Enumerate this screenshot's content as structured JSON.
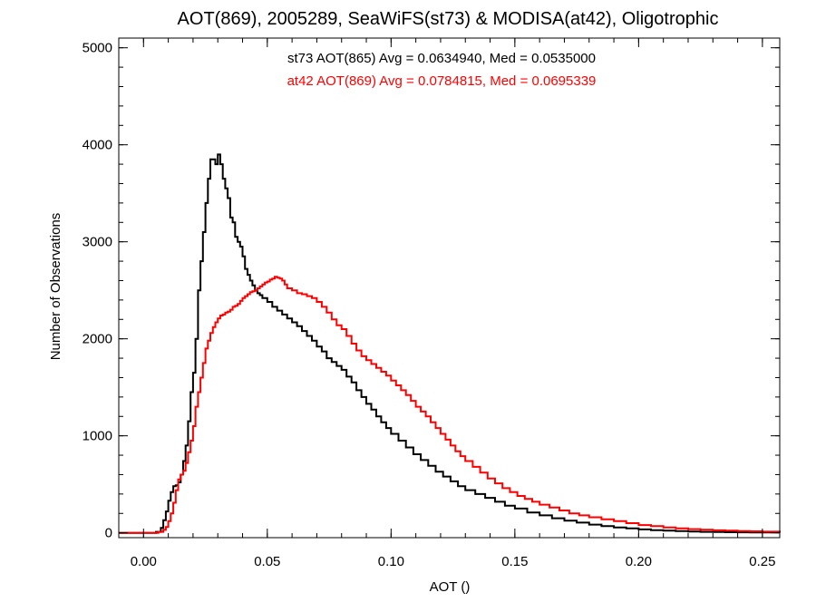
{
  "chart_data": {
    "type": "line",
    "title": "AOT(869), 2005289, SeaWiFS(st73) & MODISA(at42), Oligotrophic",
    "xlabel": "AOT ()",
    "ylabel": "Number of Observations",
    "xlim": [
      -0.01,
      0.257
    ],
    "ylim": [
      -50,
      5100
    ],
    "x_ticks": [
      0.0,
      0.05,
      0.1,
      0.15,
      0.2,
      0.25
    ],
    "x_tick_labels": [
      "0.00",
      "0.05",
      "0.10",
      "0.15",
      "0.20",
      "0.25"
    ],
    "y_ticks": [
      0,
      1000,
      2000,
      3000,
      4000,
      5000
    ],
    "y_tick_labels": [
      "0",
      "1000",
      "2000",
      "3000",
      "4000",
      "5000"
    ],
    "grid": false,
    "step": "histogram",
    "annotations": [
      {
        "text": "st73 AOT(865) Avg = 0.0634940, Med = 0.0535000",
        "color": "#000000"
      },
      {
        "text": "at42 AOT(869) Avg = 0.0784815, Med = 0.0695339",
        "color": "#ff0000"
      }
    ],
    "series": [
      {
        "color": "#000000",
        "points": [
          [
            -0.01,
            0
          ],
          [
            0.003,
            0
          ],
          [
            0.005,
            10
          ],
          [
            0.007,
            50
          ],
          [
            0.008,
            130
          ],
          [
            0.009,
            220
          ],
          [
            0.01,
            330
          ],
          [
            0.011,
            420
          ],
          [
            0.012,
            480
          ],
          [
            0.013,
            490
          ],
          [
            0.014,
            520
          ],
          [
            0.015,
            600
          ],
          [
            0.016,
            740
          ],
          [
            0.017,
            900
          ],
          [
            0.018,
            1150
          ],
          [
            0.019,
            1450
          ],
          [
            0.02,
            1650
          ],
          [
            0.021,
            2000
          ],
          [
            0.022,
            2500
          ],
          [
            0.023,
            2800
          ],
          [
            0.024,
            3100
          ],
          [
            0.025,
            3400
          ],
          [
            0.026,
            3650
          ],
          [
            0.027,
            3850
          ],
          [
            0.028,
            3850
          ],
          [
            0.029,
            3800
          ],
          [
            0.03,
            3900
          ],
          [
            0.031,
            3800
          ],
          [
            0.032,
            3650
          ],
          [
            0.033,
            3550
          ],
          [
            0.034,
            3450
          ],
          [
            0.035,
            3250
          ],
          [
            0.036,
            3200
          ],
          [
            0.037,
            3050
          ],
          [
            0.038,
            3000
          ],
          [
            0.039,
            2950
          ],
          [
            0.04,
            2850
          ],
          [
            0.041,
            2720
          ],
          [
            0.042,
            2660
          ],
          [
            0.043,
            2600
          ],
          [
            0.044,
            2550
          ],
          [
            0.045,
            2500
          ],
          [
            0.046,
            2470
          ],
          [
            0.047,
            2450
          ],
          [
            0.048,
            2420
          ],
          [
            0.05,
            2380
          ],
          [
            0.052,
            2330
          ],
          [
            0.054,
            2290
          ],
          [
            0.056,
            2250
          ],
          [
            0.058,
            2210
          ],
          [
            0.06,
            2170
          ],
          [
            0.062,
            2130
          ],
          [
            0.064,
            2080
          ],
          [
            0.066,
            2030
          ],
          [
            0.068,
            1980
          ],
          [
            0.07,
            1920
          ],
          [
            0.072,
            1870
          ],
          [
            0.074,
            1800
          ],
          [
            0.076,
            1760
          ],
          [
            0.078,
            1720
          ],
          [
            0.08,
            1680
          ],
          [
            0.082,
            1610
          ],
          [
            0.084,
            1550
          ],
          [
            0.086,
            1470
          ],
          [
            0.088,
            1400
          ],
          [
            0.09,
            1330
          ],
          [
            0.092,
            1270
          ],
          [
            0.094,
            1200
          ],
          [
            0.096,
            1140
          ],
          [
            0.098,
            1080
          ],
          [
            0.1,
            1020
          ],
          [
            0.103,
            950
          ],
          [
            0.106,
            880
          ],
          [
            0.109,
            810
          ],
          [
            0.112,
            750
          ],
          [
            0.115,
            690
          ],
          [
            0.118,
            630
          ],
          [
            0.121,
            580
          ],
          [
            0.124,
            530
          ],
          [
            0.127,
            480
          ],
          [
            0.13,
            440
          ],
          [
            0.134,
            400
          ],
          [
            0.138,
            360
          ],
          [
            0.142,
            320
          ],
          [
            0.146,
            280
          ],
          [
            0.15,
            250
          ],
          [
            0.155,
            210
          ],
          [
            0.16,
            180
          ],
          [
            0.165,
            150
          ],
          [
            0.17,
            125
          ],
          [
            0.175,
            105
          ],
          [
            0.18,
            85
          ],
          [
            0.185,
            70
          ],
          [
            0.19,
            55
          ],
          [
            0.195,
            45
          ],
          [
            0.2,
            35
          ],
          [
            0.205,
            28
          ],
          [
            0.21,
            22
          ],
          [
            0.215,
            17
          ],
          [
            0.22,
            13
          ],
          [
            0.225,
            10
          ],
          [
            0.23,
            8
          ],
          [
            0.235,
            6
          ],
          [
            0.24,
            5
          ],
          [
            0.245,
            4
          ],
          [
            0.25,
            3
          ],
          [
            0.257,
            2
          ]
        ]
      },
      {
        "color": "#ff0000",
        "points": [
          [
            -0.01,
            0
          ],
          [
            0.004,
            0
          ],
          [
            0.006,
            10
          ],
          [
            0.008,
            30
          ],
          [
            0.009,
            60
          ],
          [
            0.01,
            120
          ],
          [
            0.011,
            200
          ],
          [
            0.012,
            310
          ],
          [
            0.013,
            440
          ],
          [
            0.014,
            550
          ],
          [
            0.015,
            600
          ],
          [
            0.016,
            640
          ],
          [
            0.017,
            720
          ],
          [
            0.018,
            830
          ],
          [
            0.019,
            950
          ],
          [
            0.02,
            1100
          ],
          [
            0.021,
            1300
          ],
          [
            0.022,
            1450
          ],
          [
            0.023,
            1600
          ],
          [
            0.024,
            1750
          ],
          [
            0.025,
            1900
          ],
          [
            0.026,
            1980
          ],
          [
            0.027,
            2060
          ],
          [
            0.028,
            2120
          ],
          [
            0.029,
            2170
          ],
          [
            0.03,
            2210
          ],
          [
            0.031,
            2240
          ],
          [
            0.032,
            2250
          ],
          [
            0.033,
            2270
          ],
          [
            0.034,
            2280
          ],
          [
            0.035,
            2300
          ],
          [
            0.036,
            2330
          ],
          [
            0.037,
            2340
          ],
          [
            0.038,
            2360
          ],
          [
            0.039,
            2390
          ],
          [
            0.04,
            2420
          ],
          [
            0.041,
            2440
          ],
          [
            0.042,
            2460
          ],
          [
            0.043,
            2480
          ],
          [
            0.044,
            2490
          ],
          [
            0.045,
            2500
          ],
          [
            0.046,
            2520
          ],
          [
            0.047,
            2540
          ],
          [
            0.048,
            2560
          ],
          [
            0.049,
            2580
          ],
          [
            0.05,
            2590
          ],
          [
            0.051,
            2610
          ],
          [
            0.052,
            2620
          ],
          [
            0.053,
            2640
          ],
          [
            0.054,
            2630
          ],
          [
            0.055,
            2620
          ],
          [
            0.056,
            2600
          ],
          [
            0.057,
            2560
          ],
          [
            0.058,
            2520
          ],
          [
            0.06,
            2500
          ],
          [
            0.062,
            2470
          ],
          [
            0.064,
            2460
          ],
          [
            0.066,
            2440
          ],
          [
            0.068,
            2420
          ],
          [
            0.07,
            2380
          ],
          [
            0.072,
            2330
          ],
          [
            0.074,
            2270
          ],
          [
            0.076,
            2200
          ],
          [
            0.078,
            2140
          ],
          [
            0.08,
            2100
          ],
          [
            0.082,
            2030
          ],
          [
            0.084,
            1950
          ],
          [
            0.086,
            1880
          ],
          [
            0.088,
            1820
          ],
          [
            0.09,
            1780
          ],
          [
            0.092,
            1740
          ],
          [
            0.094,
            1700
          ],
          [
            0.096,
            1660
          ],
          [
            0.098,
            1620
          ],
          [
            0.1,
            1570
          ],
          [
            0.102,
            1520
          ],
          [
            0.104,
            1470
          ],
          [
            0.106,
            1420
          ],
          [
            0.108,
            1360
          ],
          [
            0.11,
            1300
          ],
          [
            0.112,
            1250
          ],
          [
            0.114,
            1200
          ],
          [
            0.116,
            1140
          ],
          [
            0.118,
            1080
          ],
          [
            0.12,
            1020
          ],
          [
            0.122,
            960
          ],
          [
            0.124,
            900
          ],
          [
            0.126,
            840
          ],
          [
            0.128,
            790
          ],
          [
            0.13,
            740
          ],
          [
            0.133,
            680
          ],
          [
            0.136,
            620
          ],
          [
            0.139,
            560
          ],
          [
            0.142,
            510
          ],
          [
            0.145,
            460
          ],
          [
            0.148,
            420
          ],
          [
            0.151,
            380
          ],
          [
            0.154,
            350
          ],
          [
            0.157,
            320
          ],
          [
            0.16,
            290
          ],
          [
            0.164,
            260
          ],
          [
            0.168,
            230
          ],
          [
            0.172,
            200
          ],
          [
            0.176,
            180
          ],
          [
            0.18,
            160
          ],
          [
            0.185,
            140
          ],
          [
            0.19,
            120
          ],
          [
            0.195,
            100
          ],
          [
            0.2,
            80
          ],
          [
            0.205,
            70
          ],
          [
            0.21,
            55
          ],
          [
            0.215,
            45
          ],
          [
            0.22,
            38
          ],
          [
            0.225,
            32
          ],
          [
            0.23,
            26
          ],
          [
            0.235,
            22
          ],
          [
            0.24,
            18
          ],
          [
            0.245,
            15
          ],
          [
            0.25,
            12
          ],
          [
            0.257,
            10
          ]
        ]
      }
    ]
  }
}
